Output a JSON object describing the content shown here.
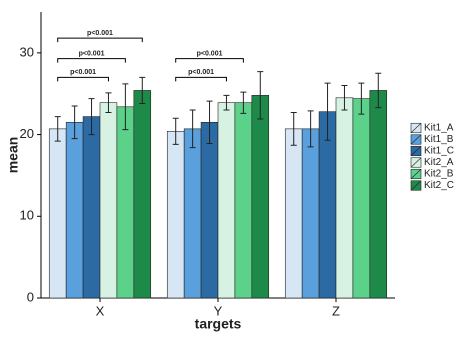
{
  "chart_data": {
    "type": "bar",
    "xlabel": "targets",
    "ylabel": "mean",
    "categories": [
      "X",
      "Y",
      "Z"
    ],
    "series": [
      {
        "name": "Kit1_A",
        "color": "#d6e6f5",
        "values": [
          20.7,
          20.4,
          20.7
        ],
        "errors": [
          1.5,
          1.6,
          2.0
        ]
      },
      {
        "name": "Kit1_B",
        "color": "#5aa0dc",
        "values": [
          21.5,
          20.7,
          20.7
        ],
        "errors": [
          2.0,
          2.3,
          2.2
        ]
      },
      {
        "name": "Kit1_C",
        "color": "#2b6aa3",
        "values": [
          22.2,
          21.5,
          22.8
        ],
        "errors": [
          2.2,
          2.6,
          3.5
        ]
      },
      {
        "name": "Kit2_A",
        "color": "#d7f2e3",
        "values": [
          23.9,
          23.9,
          24.5
        ],
        "errors": [
          1.2,
          0.9,
          1.5
        ]
      },
      {
        "name": "Kit2_B",
        "color": "#5bd18a",
        "values": [
          23.4,
          23.9,
          24.4
        ],
        "errors": [
          2.8,
          1.3,
          1.9
        ]
      },
      {
        "name": "Kit2_C",
        "color": "#1e8a4a",
        "values": [
          25.4,
          24.8,
          25.4
        ],
        "errors": [
          1.6,
          2.9,
          2.1
        ]
      }
    ],
    "ylim": [
      0,
      35
    ],
    "yticks": [
      0,
      10,
      20,
      30
    ],
    "grid": false,
    "legend": "right",
    "annotations": [
      {
        "category": "X",
        "from": "Kit1_A",
        "to": "Kit2_A",
        "y": 27,
        "label": "p<0.001"
      },
      {
        "category": "X",
        "from": "Kit1_A",
        "to": "Kit2_B",
        "y": 29.3,
        "label": "p<0.001"
      },
      {
        "category": "X",
        "from": "Kit1_A",
        "to": "Kit2_C",
        "y": 31.8,
        "label": "p<0.001"
      },
      {
        "category": "Y",
        "from": "Kit1_A",
        "to": "Kit2_A",
        "y": 27,
        "label": "p<0.001"
      },
      {
        "category": "Y",
        "from": "Kit1_A",
        "to": "Kit2_B",
        "y": 29.3,
        "label": "p<0.001"
      }
    ]
  }
}
